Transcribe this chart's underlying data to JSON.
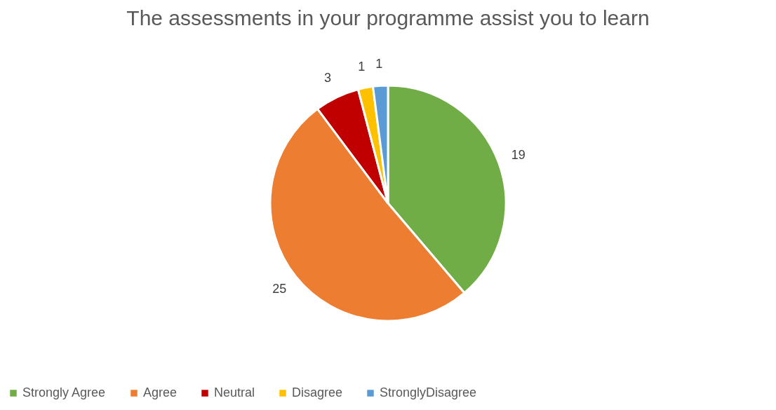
{
  "chart_data": {
    "type": "pie",
    "title": "The assessments in your programme assist you to learn",
    "categories": [
      "Strongly Agree",
      "Agree",
      "Neutral",
      "Disagree",
      "StronglyDisagree"
    ],
    "values": [
      19,
      25,
      3,
      1,
      1
    ],
    "colors": [
      "#70ad47",
      "#ed7d31",
      "#c00000",
      "#ffc000",
      "#5b9bd5"
    ],
    "data_labels": true,
    "legend": "bottom"
  }
}
